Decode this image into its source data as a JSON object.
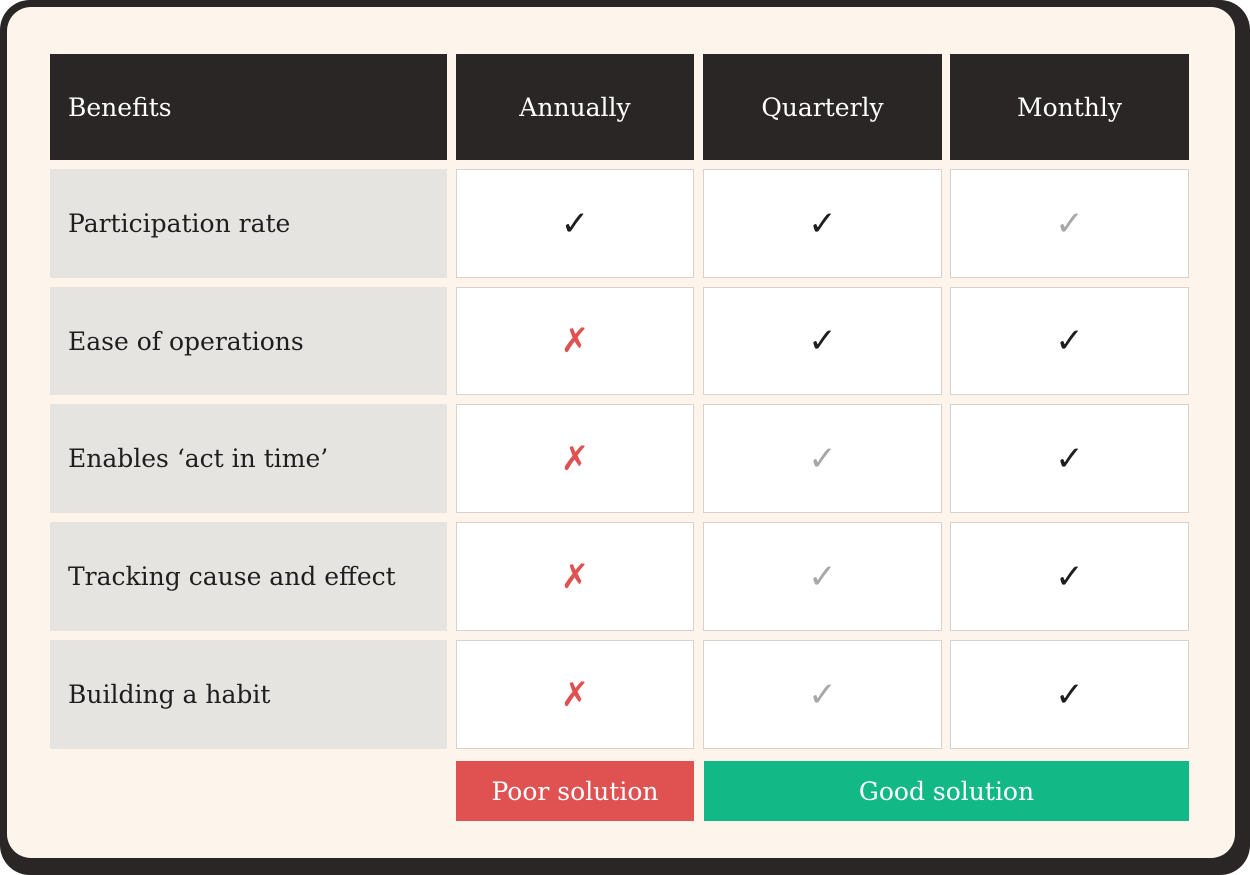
{
  "table": {
    "header": [
      "Benefits",
      "Annually",
      "Quarterly",
      "Monthly"
    ],
    "rows": [
      {
        "label": "Participation rate",
        "cells": [
          {
            "mark": "✓",
            "color": "#1e1e1e"
          },
          {
            "mark": "✓",
            "color": "#1e1e1e"
          },
          {
            "mark": "✓",
            "color": "#a8a8a8"
          }
        ]
      },
      {
        "label": "Ease of operations",
        "cells": [
          {
            "mark": "✗",
            "color": "#e05252"
          },
          {
            "mark": "✓",
            "color": "#1e1e1e"
          },
          {
            "mark": "✓",
            "color": "#1e1e1e"
          }
        ]
      },
      {
        "label": "Enables ‘act in time’",
        "cells": [
          {
            "mark": "✗",
            "color": "#e05252"
          },
          {
            "mark": "✓",
            "color": "#a8a8a8"
          },
          {
            "mark": "✓",
            "color": "#1e1e1e"
          }
        ]
      },
      {
        "label": "Tracking cause and effect",
        "cells": [
          {
            "mark": "✗",
            "color": "#e05252"
          },
          {
            "mark": "✓",
            "color": "#a8a8a8"
          },
          {
            "mark": "✓",
            "color": "#1e1e1e"
          }
        ]
      },
      {
        "label": "Building a habit",
        "cells": [
          {
            "mark": "✗",
            "color": "#e05252"
          },
          {
            "mark": "✓",
            "color": "#a8a8a8"
          },
          {
            "mark": "✓",
            "color": "#1e1e1e"
          }
        ]
      }
    ]
  },
  "legend": [
    {
      "label": "Poor solution",
      "color": "#e05252"
    },
    {
      "label": "Good solution",
      "color": "#12b886"
    }
  ]
}
